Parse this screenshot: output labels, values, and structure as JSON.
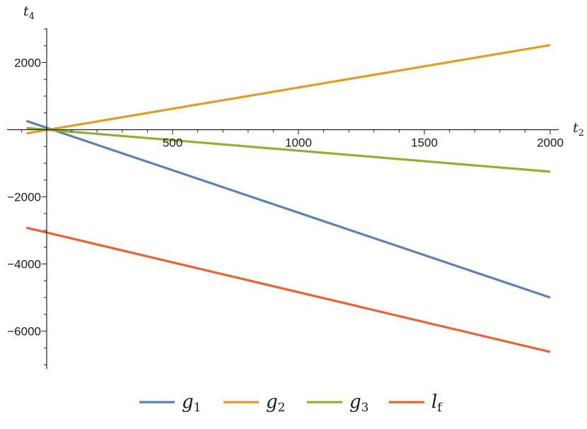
{
  "chart_data": {
    "type": "line",
    "x_axis": {
      "label": "t",
      "label_sub": "2",
      "range": [
        -80,
        2030
      ],
      "ticks": [
        500,
        1000,
        1500,
        2000
      ],
      "tick_labels": [
        "500",
        "1000",
        "1500",
        "2000"
      ]
    },
    "y_axis": {
      "label": "t",
      "label_sub": "4",
      "range": [
        -7200,
        3000
      ],
      "ticks": [
        2000,
        -2000,
        -4000,
        -6000
      ],
      "tick_labels": [
        "2000",
        "−2000",
        "−4000",
        "−6000"
      ]
    },
    "grid": false,
    "legend_position": "bottom",
    "series": [
      {
        "name": "g",
        "name_sub": "1",
        "color": "#5e81b5",
        "x": [
          -80,
          2000
        ],
        "y": [
          260,
          -5000
        ]
      },
      {
        "name": "g",
        "name_sub": "2",
        "color": "#e19c24",
        "x": [
          -80,
          2000
        ],
        "y": [
          -110,
          2520
        ]
      },
      {
        "name": "g",
        "name_sub": "3",
        "color": "#8fb032",
        "x": [
          -80,
          2000
        ],
        "y": [
          50,
          -1250
        ]
      },
      {
        "name": "l",
        "name_sub": "f",
        "color": "#eb6235",
        "x": [
          -80,
          2000
        ],
        "y": [
          -2920,
          -6620
        ]
      }
    ]
  }
}
